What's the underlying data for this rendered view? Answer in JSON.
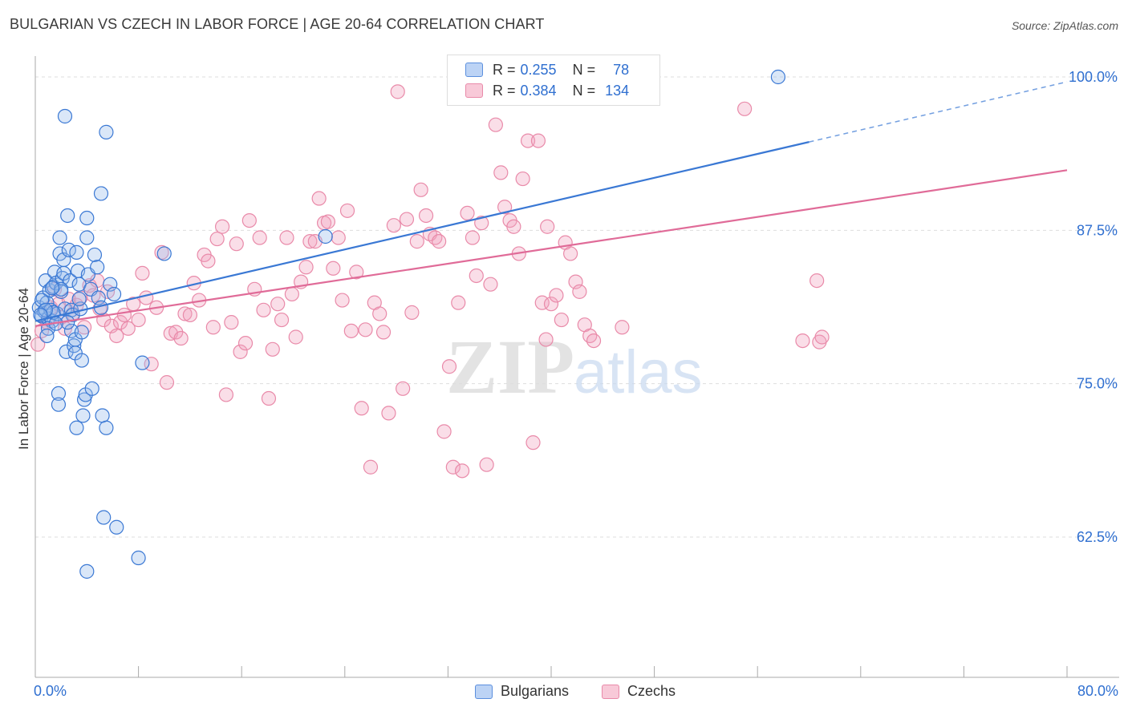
{
  "header": {
    "title": "BULGARIAN VS CZECH IN LABOR FORCE | AGE 20-64 CORRELATION CHART",
    "source": "Source: ZipAtlas.com"
  },
  "watermark": {
    "zip": "ZIP",
    "atlas": "atlas"
  },
  "legend_top": {
    "rows": [
      {
        "r_label": "R =",
        "r_value": "0.255",
        "n_label": "N =",
        "n_value": "78",
        "color": "#5b8fde"
      },
      {
        "r_label": "R =",
        "r_value": "0.384",
        "n_label": "N =",
        "n_value": "134",
        "color": "#e98aa9"
      }
    ]
  },
  "legend_bottom": {
    "items": [
      "Bulgarians",
      "Czechs"
    ]
  },
  "chart_data": {
    "type": "scatter",
    "title": "BULGARIAN VS CZECH IN LABOR FORCE | AGE 20-64 CORRELATION CHART",
    "xlabel": "",
    "ylabel": "In Labor Force | Age 20-64",
    "xlim": [
      0,
      80
    ],
    "ylim": [
      50,
      102
    ],
    "x_tick_labels": [
      "0.0%",
      "80.0%"
    ],
    "y_ticks": [
      62.5,
      75.0,
      87.5,
      100.0
    ],
    "y_tick_labels": [
      "62.5%",
      "75.0%",
      "87.5%",
      "100.0%"
    ],
    "grid": true,
    "colors": {
      "bulgarians": "#5b8fde",
      "czechs": "#e98aa9",
      "blue_line": "#3a78d4",
      "pink_line": "#e06b98"
    },
    "series": [
      {
        "name": "Bulgarians",
        "points": [
          [
            0.3,
            81.2
          ],
          [
            0.5,
            80.5
          ],
          [
            0.6,
            82.0
          ],
          [
            0.7,
            80.9
          ],
          [
            0.8,
            83.4
          ],
          [
            0.9,
            81.6
          ],
          [
            1.0,
            80.3
          ],
          [
            1.1,
            82.6
          ],
          [
            1.2,
            81.0
          ],
          [
            1.3,
            80.1
          ],
          [
            1.4,
            82.9
          ],
          [
            1.5,
            84.1
          ],
          [
            1.6,
            83.2
          ],
          [
            1.7,
            80.7
          ],
          [
            1.8,
            74.2
          ],
          [
            1.8,
            73.3
          ],
          [
            1.9,
            86.9
          ],
          [
            1.9,
            85.6
          ],
          [
            2.0,
            82.5
          ],
          [
            2.1,
            83.6
          ],
          [
            2.2,
            85.1
          ],
          [
            2.2,
            84.0
          ],
          [
            2.3,
            81.1
          ],
          [
            2.4,
            77.6
          ],
          [
            2.3,
            96.8
          ],
          [
            2.5,
            88.7
          ],
          [
            2.6,
            85.9
          ],
          [
            2.7,
            83.4
          ],
          [
            2.8,
            81.0
          ],
          [
            2.9,
            80.6
          ],
          [
            2.8,
            79.3
          ],
          [
            3.0,
            78.1
          ],
          [
            3.1,
            78.6
          ],
          [
            3.1,
            77.5
          ],
          [
            3.2,
            71.4
          ],
          [
            3.2,
            85.7
          ],
          [
            3.3,
            84.2
          ],
          [
            3.4,
            83.1
          ],
          [
            3.5,
            81.1
          ],
          [
            3.6,
            79.2
          ],
          [
            3.6,
            76.9
          ],
          [
            3.7,
            72.4
          ],
          [
            3.8,
            73.7
          ],
          [
            3.9,
            74.1
          ],
          [
            4.0,
            88.5
          ],
          [
            4.0,
            86.9
          ],
          [
            4.1,
            83.9
          ],
          [
            4.3,
            82.7
          ],
          [
            4.4,
            74.6
          ],
          [
            4.6,
            85.5
          ],
          [
            4.8,
            84.5
          ],
          [
            4.9,
            82.0
          ],
          [
            5.1,
            81.2
          ],
          [
            5.1,
            90.5
          ],
          [
            5.2,
            72.4
          ],
          [
            5.3,
            64.1
          ],
          [
            5.5,
            71.4
          ],
          [
            5.5,
            95.5
          ],
          [
            5.8,
            83.1
          ],
          [
            6.1,
            82.3
          ],
          [
            6.3,
            63.3
          ],
          [
            8.0,
            60.8
          ],
          [
            8.3,
            76.7
          ],
          [
            10.0,
            85.6
          ],
          [
            4.0,
            59.7
          ],
          [
            2.5,
            80.0
          ],
          [
            1.0,
            79.5
          ],
          [
            0.5,
            81.8
          ],
          [
            1.4,
            80.8
          ],
          [
            0.9,
            78.9
          ],
          [
            22.5,
            87.0
          ],
          [
            57.6,
            100.0
          ],
          [
            3.4,
            81.9
          ],
          [
            2.0,
            82.7
          ],
          [
            1.3,
            82.8
          ],
          [
            0.8,
            81.0
          ],
          [
            1.6,
            79.9
          ],
          [
            0.4,
            80.6
          ]
        ]
      },
      {
        "name": "Czechs",
        "points": [
          [
            0.2,
            78.2
          ],
          [
            0.5,
            79.3
          ],
          [
            0.9,
            80.0
          ],
          [
            1.2,
            81.2
          ],
          [
            1.5,
            82.7
          ],
          [
            1.8,
            81.5
          ],
          [
            2.0,
            80.4
          ],
          [
            2.3,
            79.5
          ],
          [
            2.6,
            81.9
          ],
          [
            2.9,
            80.7
          ],
          [
            3.2,
            81.4
          ],
          [
            3.5,
            82.0
          ],
          [
            3.8,
            79.6
          ],
          [
            4.2,
            83.0
          ],
          [
            4.5,
            82.2
          ],
          [
            4.8,
            83.4
          ],
          [
            5.0,
            81.1
          ],
          [
            5.3,
            80.2
          ],
          [
            5.6,
            82.5
          ],
          [
            5.9,
            79.7
          ],
          [
            6.3,
            78.9
          ],
          [
            6.6,
            80.0
          ],
          [
            6.9,
            80.6
          ],
          [
            7.2,
            79.5
          ],
          [
            7.6,
            81.5
          ],
          [
            8.0,
            80.2
          ],
          [
            8.3,
            84.0
          ],
          [
            8.6,
            82.0
          ],
          [
            9.0,
            76.6
          ],
          [
            9.4,
            81.2
          ],
          [
            9.8,
            85.7
          ],
          [
            10.2,
            75.1
          ],
          [
            10.5,
            79.1
          ],
          [
            10.9,
            79.2
          ],
          [
            11.3,
            78.7
          ],
          [
            11.6,
            80.7
          ],
          [
            12.0,
            80.6
          ],
          [
            12.3,
            83.2
          ],
          [
            12.7,
            81.8
          ],
          [
            13.1,
            85.5
          ],
          [
            13.4,
            85.0
          ],
          [
            13.8,
            79.6
          ],
          [
            14.1,
            86.8
          ],
          [
            14.5,
            87.8
          ],
          [
            14.8,
            74.1
          ],
          [
            15.2,
            80.0
          ],
          [
            15.6,
            86.4
          ],
          [
            15.9,
            77.6
          ],
          [
            16.3,
            78.3
          ],
          [
            16.6,
            88.3
          ],
          [
            17.0,
            82.7
          ],
          [
            17.4,
            86.9
          ],
          [
            17.7,
            81.0
          ],
          [
            18.1,
            73.8
          ],
          [
            18.4,
            77.8
          ],
          [
            18.8,
            81.5
          ],
          [
            19.1,
            80.2
          ],
          [
            19.5,
            86.9
          ],
          [
            19.9,
            82.3
          ],
          [
            20.2,
            78.8
          ],
          [
            20.6,
            83.3
          ],
          [
            21.0,
            84.5
          ],
          [
            21.3,
            86.6
          ],
          [
            21.7,
            86.6
          ],
          [
            22.0,
            90.1
          ],
          [
            22.4,
            88.1
          ],
          [
            22.7,
            88.2
          ],
          [
            23.1,
            84.4
          ],
          [
            23.5,
            86.9
          ],
          [
            23.8,
            81.8
          ],
          [
            24.2,
            89.1
          ],
          [
            24.5,
            79.3
          ],
          [
            24.9,
            84.1
          ],
          [
            25.3,
            73.0
          ],
          [
            25.6,
            79.4
          ],
          [
            26.0,
            68.2
          ],
          [
            26.3,
            81.6
          ],
          [
            26.7,
            80.7
          ],
          [
            27.0,
            79.2
          ],
          [
            27.4,
            72.6
          ],
          [
            27.8,
            87.9
          ],
          [
            28.1,
            98.8
          ],
          [
            28.5,
            74.6
          ],
          [
            28.8,
            88.4
          ],
          [
            29.2,
            80.8
          ],
          [
            29.6,
            86.6
          ],
          [
            29.9,
            90.8
          ],
          [
            30.3,
            88.7
          ],
          [
            30.6,
            87.2
          ],
          [
            31.0,
            86.9
          ],
          [
            31.3,
            86.6
          ],
          [
            31.7,
            71.1
          ],
          [
            32.1,
            76.4
          ],
          [
            32.4,
            68.2
          ],
          [
            32.8,
            81.6
          ],
          [
            33.1,
            67.9
          ],
          [
            33.5,
            88.9
          ],
          [
            33.9,
            86.9
          ],
          [
            34.2,
            83.8
          ],
          [
            34.6,
            88.1
          ],
          [
            35.0,
            68.4
          ],
          [
            35.3,
            83.1
          ],
          [
            35.7,
            96.1
          ],
          [
            36.1,
            92.2
          ],
          [
            36.4,
            89.4
          ],
          [
            36.8,
            88.3
          ],
          [
            37.1,
            87.8
          ],
          [
            37.5,
            85.6
          ],
          [
            37.8,
            91.7
          ],
          [
            38.2,
            94.8
          ],
          [
            38.6,
            70.2
          ],
          [
            39.0,
            94.8
          ],
          [
            39.3,
            81.6
          ],
          [
            39.7,
            87.8
          ],
          [
            40.0,
            81.5
          ],
          [
            40.4,
            82.2
          ],
          [
            40.8,
            80.2
          ],
          [
            41.1,
            86.5
          ],
          [
            41.5,
            85.6
          ],
          [
            41.9,
            83.3
          ],
          [
            42.2,
            82.5
          ],
          [
            42.6,
            79.8
          ],
          [
            43.0,
            78.9
          ],
          [
            43.3,
            78.5
          ],
          [
            33.4,
            100.0
          ],
          [
            38.8,
            100.0
          ],
          [
            39.6,
            78.6
          ],
          [
            60.8,
            78.4
          ],
          [
            55.0,
            97.4
          ],
          [
            60.6,
            83.4
          ],
          [
            47.4,
            100.0
          ],
          [
            59.5,
            78.5
          ],
          [
            61.0,
            78.8
          ],
          [
            45.5,
            79.6
          ]
        ]
      }
    ],
    "trend_lines": [
      {
        "name": "Bulgarians",
        "x": [
          0,
          60
        ],
        "y": [
          80.1,
          94.7
        ],
        "dashed_extension_to": [
          80,
          99.6
        ]
      },
      {
        "name": "Czechs",
        "x": [
          0,
          80
        ],
        "y": [
          79.7,
          92.4
        ]
      }
    ]
  }
}
